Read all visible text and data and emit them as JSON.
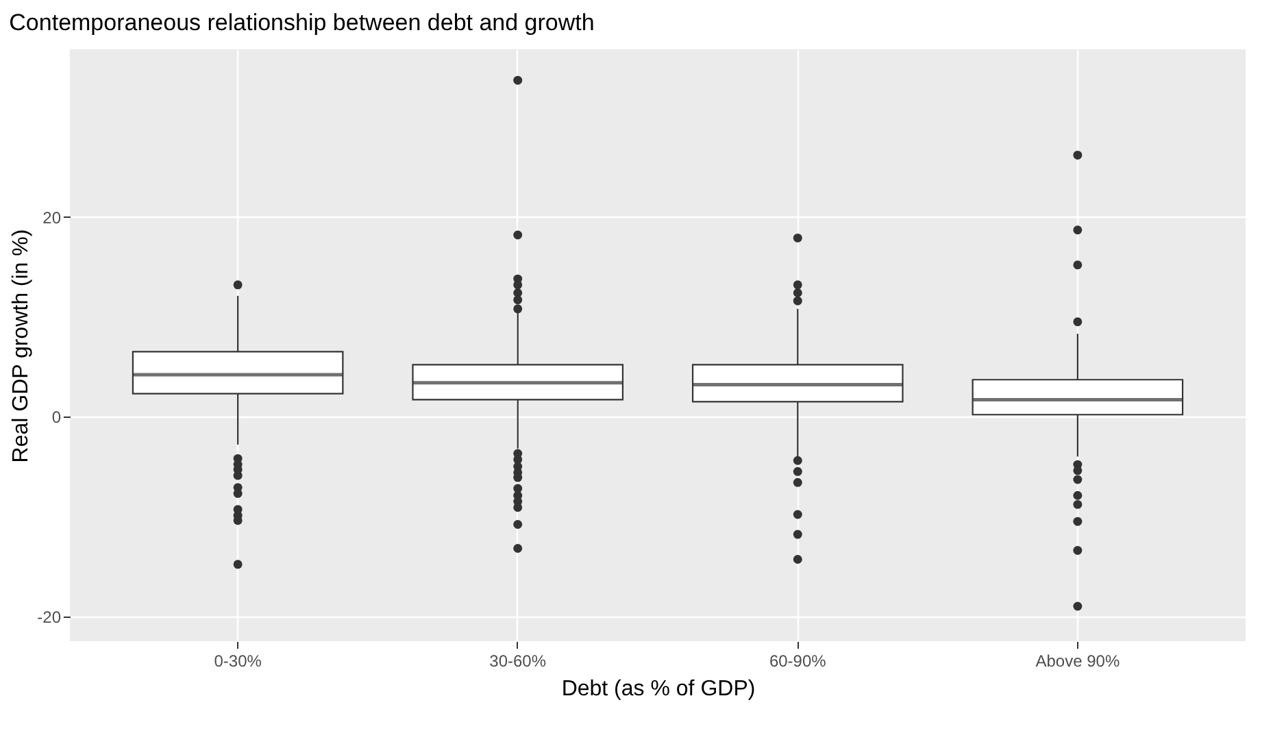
{
  "chart_data": {
    "type": "box",
    "title": "Contemporaneous relationship between debt and growth",
    "xlabel": "Debt (as % of GDP)",
    "ylabel": "Real GDP growth (in %)",
    "categories": [
      "0-30%",
      "30-60%",
      "60-90%",
      "Above 90%"
    ],
    "boxes": [
      {
        "low": -2.8,
        "q1": 2.3,
        "median": 4.2,
        "q3": 6.5,
        "high": 12.1,
        "outliers": [
          13.2,
          -4.2,
          -4.8,
          -5.3,
          -5.9,
          -7.1,
          -7.7,
          -9.3,
          -9.9,
          -10.4,
          -14.8
        ]
      },
      {
        "low": -3.2,
        "q1": 1.7,
        "median": 3.4,
        "q3": 5.2,
        "high": 10.4,
        "outliers": [
          33.7,
          18.2,
          13.8,
          13.2,
          12.4,
          11.7,
          10.8,
          -3.7,
          -4.3,
          -5.0,
          -5.6,
          -6.1,
          -7.2,
          -7.9,
          -8.5,
          -9.1,
          -10.8,
          -13.2
        ]
      },
      {
        "low": -4.1,
        "q1": 1.5,
        "median": 3.2,
        "q3": 5.2,
        "high": 10.8,
        "outliers": [
          17.9,
          13.2,
          12.4,
          11.6,
          -4.4,
          -5.5,
          -6.6,
          -9.8,
          -11.8,
          -14.3
        ]
      },
      {
        "low": -4.0,
        "q1": 0.2,
        "median": 1.7,
        "q3": 3.7,
        "high": 8.3,
        "outliers": [
          26.2,
          18.7,
          15.2,
          9.5,
          -4.8,
          -5.4,
          -6.3,
          -7.9,
          -8.8,
          -10.5,
          -13.4,
          -19.0
        ]
      }
    ],
    "ylim": [
      -22.5,
      36.8
    ],
    "yticks": [
      -20,
      0,
      20
    ],
    "grid": true
  }
}
